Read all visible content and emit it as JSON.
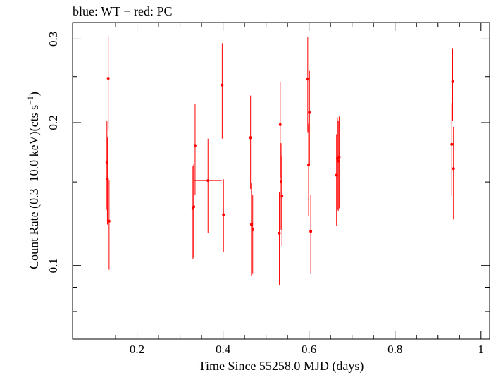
{
  "chart_data": {
    "type": "scatter",
    "title": "blue: WT − red: PC",
    "xlabel": "Time Since 55258.0 MJD (days)",
    "ylabel_main": "Count Rate (0.3–10.0 keV)(cts s",
    "ylabel_sup": "−1",
    "ylabel_end": ")",
    "y_scale": "log",
    "xlim": [
      0.05,
      1.02
    ],
    "ylim": [
      0.07,
      0.325
    ],
    "xticks": [
      {
        "value": 0.2,
        "label": "0.2"
      },
      {
        "value": 0.4,
        "label": "0.4"
      },
      {
        "value": 0.6,
        "label": "0.6"
      },
      {
        "value": 0.8,
        "label": "0.8"
      },
      {
        "value": 1.0,
        "label": "1"
      }
    ],
    "yticks": [
      {
        "value": 0.1,
        "label": "0.1"
      },
      {
        "value": 0.2,
        "label": "0.2"
      },
      {
        "value": 0.3,
        "label": "0.3"
      }
    ],
    "grid": false,
    "series": [
      {
        "color": "#ff0000",
        "points": [
          {
            "x": 0.13,
            "y": 0.165,
            "ylo": 0.131,
            "yhi": 0.202,
            "xerr": 0.001
          },
          {
            "x": 0.131,
            "y": 0.152,
            "ylo": 0.122,
            "yhi": 0.186,
            "xerr": 0.001
          },
          {
            "x": 0.133,
            "y": 0.248,
            "ylo": 0.193,
            "yhi": 0.304,
            "xerr": 0.001
          },
          {
            "x": 0.135,
            "y": 0.124,
            "ylo": 0.098,
            "yhi": 0.151,
            "xerr": 0.001
          },
          {
            "x": 0.33,
            "y": 0.132,
            "ylo": 0.103,
            "yhi": 0.162,
            "xerr": 0.001
          },
          {
            "x": 0.332,
            "y": 0.133,
            "ylo": 0.104,
            "yhi": 0.164,
            "xerr": 0.001
          },
          {
            "x": 0.335,
            "y": 0.179,
            "ylo": 0.141,
            "yhi": 0.219,
            "xerr": 0.001
          },
          {
            "x": 0.365,
            "y": 0.151,
            "ylo": 0.117,
            "yhi": 0.185,
            "xerr": 0.032
          },
          {
            "x": 0.398,
            "y": 0.24,
            "ylo": 0.185,
            "yhi": 0.294,
            "xerr": 0.001
          },
          {
            "x": 0.401,
            "y": 0.128,
            "ylo": 0.107,
            "yhi": 0.152,
            "xerr": 0.001
          },
          {
            "x": 0.464,
            "y": 0.186,
            "ylo": 0.145,
            "yhi": 0.228,
            "xerr": 0.001
          },
          {
            "x": 0.466,
            "y": 0.122,
            "ylo": 0.095,
            "yhi": 0.149,
            "xerr": 0.001
          },
          {
            "x": 0.469,
            "y": 0.119,
            "ylo": 0.096,
            "yhi": 0.141,
            "xerr": 0.001
          },
          {
            "x": 0.531,
            "y": 0.117,
            "ylo": 0.091,
            "yhi": 0.143,
            "xerr": 0.001
          },
          {
            "x": 0.533,
            "y": 0.198,
            "ylo": 0.153,
            "yhi": 0.243,
            "xerr": 0.001
          },
          {
            "x": 0.535,
            "y": 0.15,
            "ylo": 0.119,
            "yhi": 0.181,
            "xerr": 0.001
          },
          {
            "x": 0.537,
            "y": 0.14,
            "ylo": 0.11,
            "yhi": 0.17,
            "xerr": 0.001
          },
          {
            "x": 0.597,
            "y": 0.247,
            "ylo": 0.191,
            "yhi": 0.303,
            "xerr": 0.001
          },
          {
            "x": 0.599,
            "y": 0.163,
            "ylo": 0.127,
            "yhi": 0.199,
            "xerr": 0.001
          },
          {
            "x": 0.601,
            "y": 0.21,
            "ylo": 0.163,
            "yhi": 0.257,
            "xerr": 0.001
          },
          {
            "x": 0.604,
            "y": 0.118,
            "ylo": 0.096,
            "yhi": 0.141,
            "xerr": 0.001
          },
          {
            "x": 0.664,
            "y": 0.155,
            "ylo": 0.121,
            "yhi": 0.189,
            "xerr": 0.001
          },
          {
            "x": 0.666,
            "y": 0.168,
            "ylo": 0.131,
            "yhi": 0.205,
            "xerr": 0.001
          },
          {
            "x": 0.668,
            "y": 0.166,
            "ylo": 0.13,
            "yhi": 0.202,
            "xerr": 0.001
          },
          {
            "x": 0.67,
            "y": 0.169,
            "ylo": 0.132,
            "yhi": 0.206,
            "xerr": 0.001
          },
          {
            "x": 0.932,
            "y": 0.18,
            "ylo": 0.14,
            "yhi": 0.22,
            "xerr": 0.001
          },
          {
            "x": 0.934,
            "y": 0.244,
            "ylo": 0.202,
            "yhi": 0.287,
            "xerr": 0.001
          },
          {
            "x": 0.936,
            "y": 0.16,
            "ylo": 0.125,
            "yhi": 0.196,
            "xerr": 0.001
          }
        ]
      }
    ]
  }
}
